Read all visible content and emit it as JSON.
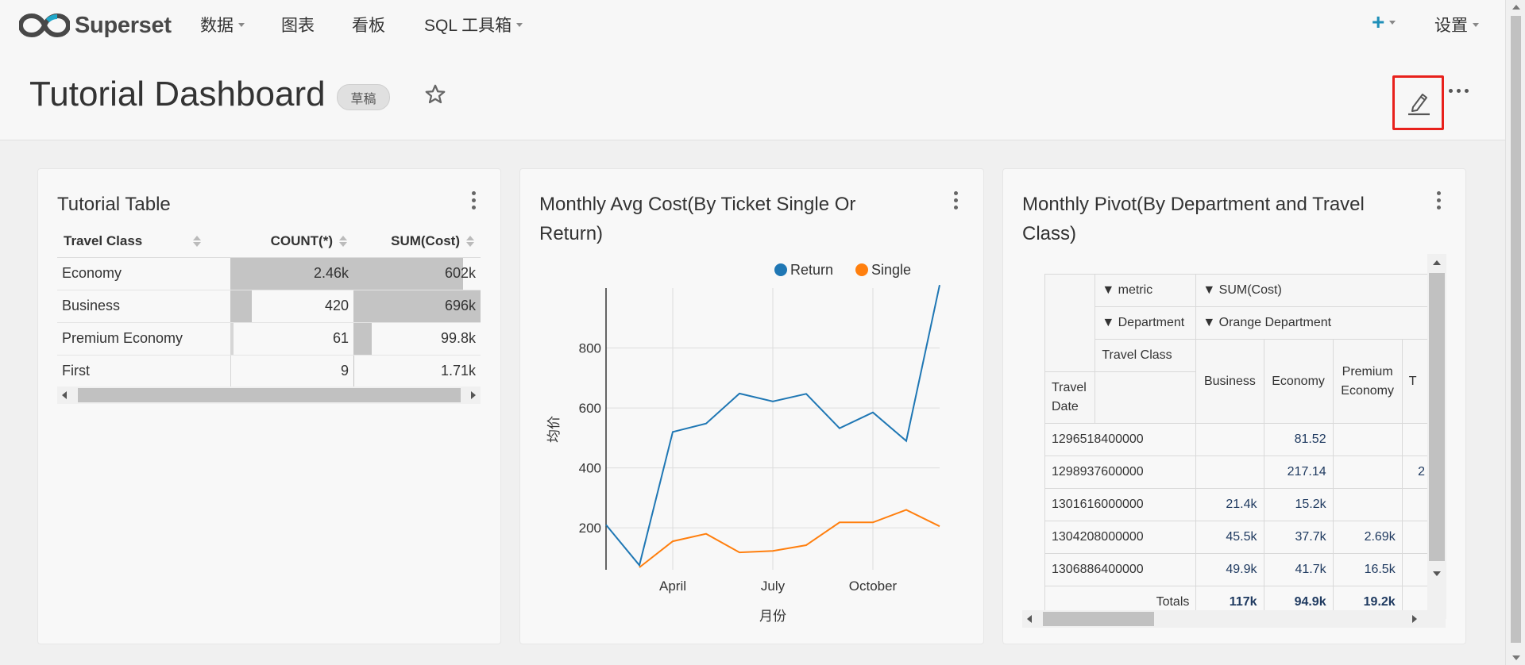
{
  "nav": {
    "logo_text": "Superset",
    "items": [
      "数据",
      "图表",
      "看板",
      "SQL 工具箱"
    ],
    "settings": "设置"
  },
  "header": {
    "title": "Tutorial Dashboard",
    "badge": "草稿"
  },
  "table_card": {
    "title": "Tutorial Table",
    "columns": [
      "Travel Class",
      "COUNT(*)",
      "SUM(Cost)"
    ],
    "rows": [
      {
        "travel_class": "Economy",
        "count": "2.46k",
        "sum": "602k",
        "count_frac": 1.0,
        "sum_frac": 0.865
      },
      {
        "travel_class": "Business",
        "count": "420",
        "sum": "696k",
        "count_frac": 0.171,
        "sum_frac": 1.0
      },
      {
        "travel_class": "Premium Economy",
        "count": "61",
        "sum": "99.8k",
        "count_frac": 0.025,
        "sum_frac": 0.143
      },
      {
        "travel_class": "First",
        "count": "9",
        "sum": "1.71k",
        "count_frac": 0.004,
        "sum_frac": 0.002
      }
    ]
  },
  "line_card": {
    "title": "Monthly Avg Cost(By Ticket Single Or Return)",
    "ylabel": "均价",
    "xlabel": "月份"
  },
  "chart_data": {
    "type": "line",
    "title": "Monthly Avg Cost(By Ticket Single Or Return)",
    "xlabel": "月份",
    "ylabel": "均价",
    "x": [
      "2011-01",
      "2011-02",
      "2011-03",
      "2011-04",
      "2011-05",
      "2011-06",
      "2011-07",
      "2011-08",
      "2011-09",
      "2011-10",
      "2011-11",
      "2011-12"
    ],
    "x_tick_labels": [
      "April",
      "July",
      "October"
    ],
    "y_ticks": [
      200,
      400,
      600,
      800
    ],
    "ylim": [
      60,
      1000
    ],
    "legend": "top",
    "grid": true,
    "series": [
      {
        "name": "Return",
        "color": "#1f77b4",
        "values": [
          210,
          75,
          520,
          548,
          648,
          622,
          647,
          532,
          585,
          490,
          1010,
          null
        ]
      },
      {
        "name": "Single",
        "color": "#ff7f0e",
        "values": [
          null,
          68,
          155,
          180,
          118,
          123,
          142,
          218,
          218,
          260,
          205,
          null
        ]
      }
    ]
  },
  "pivot_card": {
    "title": "Monthly Pivot(By Department and Travel Class)",
    "metric_label": "▼ metric",
    "metric_value": "▼ SUM(Cost)",
    "department_label": "▼ Department",
    "department_value": "▼ Orange Department",
    "travel_class_label": "Travel Class",
    "travel_date_label": "Travel Date",
    "columns": [
      "Business",
      "Economy",
      "Premium Economy",
      "T"
    ],
    "rows": [
      {
        "date": "1296518400000",
        "cells": [
          "",
          "81.52",
          "",
          ""
        ]
      },
      {
        "date": "1298937600000",
        "cells": [
          "",
          "217.14",
          "",
          "2"
        ]
      },
      {
        "date": "1301616000000",
        "cells": [
          "21.4k",
          "15.2k",
          "",
          ""
        ]
      },
      {
        "date": "1304208000000",
        "cells": [
          "45.5k",
          "37.7k",
          "2.69k",
          ""
        ]
      },
      {
        "date": "1306886400000",
        "cells": [
          "49.9k",
          "41.7k",
          "16.5k",
          ""
        ]
      }
    ],
    "totals_label": "Totals",
    "totals": [
      "117k",
      "94.9k",
      "19.2k",
      ""
    ]
  }
}
